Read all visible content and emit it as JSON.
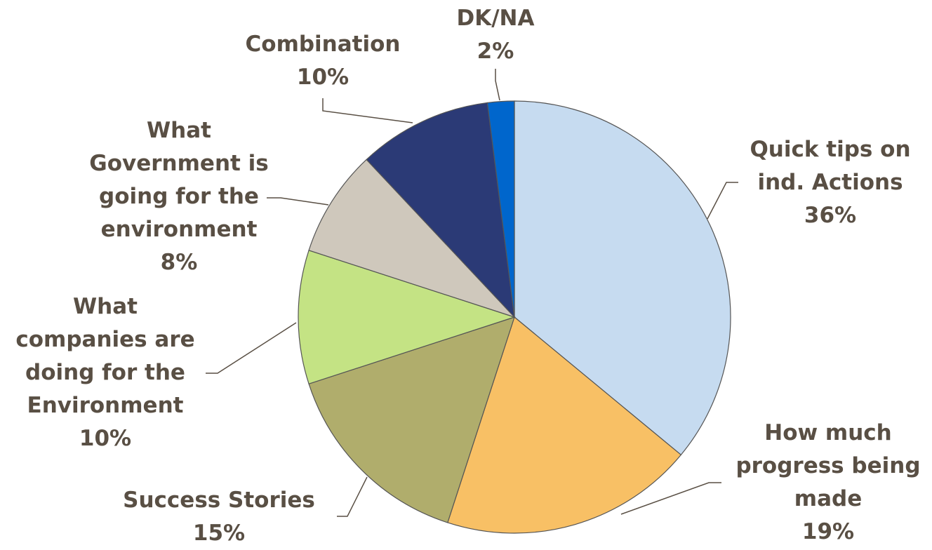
{
  "chart_data": {
    "type": "pie",
    "categories": [
      "Quick tips on ind. Actions",
      "How much progress being made",
      "Success Stories",
      "What companies are doing for the Environment",
      "What Government is going for the environment",
      "Combination",
      "DK/NA"
    ],
    "values": [
      36,
      19,
      15,
      10,
      8,
      10,
      2
    ],
    "value_labels": [
      "36%",
      "19%",
      "15%",
      "10%",
      "8%",
      "10%",
      "2%"
    ],
    "colors": [
      "#c6dbf0",
      "#f8c065",
      "#b0ad6c",
      "#c4e384",
      "#cfc8bc",
      "#2b3a76",
      "#0066cc"
    ]
  }
}
